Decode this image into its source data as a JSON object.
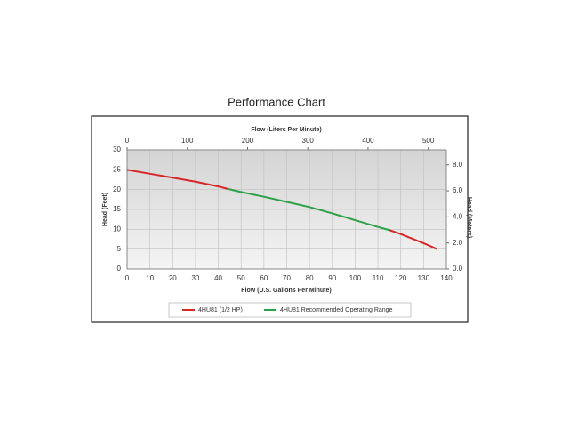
{
  "chart_data": {
    "type": "line",
    "title": "Performance Chart",
    "top_axis_label": "Flow (Liters Per Minute)",
    "xlabel": "Flow (U.S. Gallons Per Minute)",
    "ylabel": "Head (Feet)",
    "y2label": "Head (Meters)",
    "x": [
      0,
      10,
      20,
      30,
      40,
      44,
      50,
      60,
      70,
      80,
      90,
      100,
      110,
      115,
      120,
      130,
      136
    ],
    "series": [
      {
        "name": "4HU81 (1/2 HP)",
        "color": "#d62728",
        "values": [
          25,
          24,
          23,
          22,
          20.8,
          20.2,
          null,
          null,
          null,
          null,
          null,
          null,
          null,
          9.8,
          8.8,
          6.5,
          5
        ]
      },
      {
        "name": "4HU81 Recommended Operating Range",
        "color": "#2ca044",
        "values": [
          null,
          null,
          null,
          null,
          null,
          20.2,
          19.4,
          18.2,
          16.9,
          15.6,
          14,
          12.3,
          10.6,
          9.8,
          null,
          null,
          null
        ]
      }
    ],
    "xlim": [
      0,
      140
    ],
    "xticks": [
      0,
      10,
      20,
      30,
      40,
      50,
      60,
      70,
      80,
      90,
      100,
      110,
      120,
      130,
      140
    ],
    "x2lim": [
      0,
      530
    ],
    "x2ticks": [
      0,
      100,
      200,
      300,
      400,
      500
    ],
    "ylim": [
      0,
      30
    ],
    "yticks": [
      0,
      5,
      10,
      15,
      20,
      25,
      30
    ],
    "y2lim": [
      0,
      9.144
    ],
    "y2ticks": [
      {
        "value": 0,
        "label": "0.0"
      },
      {
        "value": 2,
        "label": "2.0"
      },
      {
        "value": 4,
        "label": "4.0"
      },
      {
        "value": 6,
        "label": "6.0"
      },
      {
        "value": 8,
        "label": "8.0"
      }
    ],
    "grid": true,
    "legend": "bottom"
  }
}
